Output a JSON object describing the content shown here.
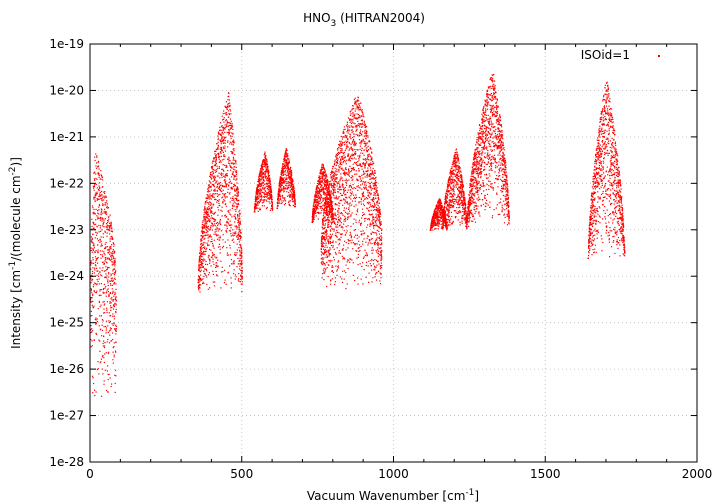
{
  "chart_data": {
    "type": "scatter",
    "title": {
      "main": "HNO",
      "sub": "3",
      "rest": " (HITRAN2004)"
    },
    "xlabel": {
      "p1": "Vacuum Wavenumber [cm",
      "sup1": "-1",
      "p2": "]"
    },
    "ylabel": {
      "p1": "Intensity [cm",
      "sup1": "-1",
      "p2": "/(molecule cm",
      "sup2": "-2",
      "p3": ")]"
    },
    "xlim": [
      0,
      2000
    ],
    "ylim": [
      1e-28,
      1e-19
    ],
    "yscale": "log",
    "grid": true,
    "legend": "top-right",
    "x_ticks": [
      "0",
      "500",
      "1000",
      "1500",
      "2000"
    ],
    "y_ticks": [
      "1e-19",
      "1e-20",
      "1e-21",
      "1e-22",
      "1e-23",
      "1e-24",
      "1e-25",
      "1e-26",
      "1e-27",
      "1e-28"
    ],
    "series": [
      {
        "name": "ISOid=1",
        "color": "#ff0000",
        "bands": [
          {
            "x": [
              0,
              85
            ],
            "peak_x": 15,
            "peak": 6e-22,
            "base": 1e-27,
            "edge": 1e-24
          },
          {
            "x": [
              355,
              500
            ],
            "peak_x": 455,
            "peak": 1e-20,
            "base": 4e-25,
            "edge": 9e-25
          },
          {
            "x": [
              540,
              600
            ],
            "peak_x": 575,
            "peak": 5e-22,
            "base": 2.5e-23,
            "edge": 2.5e-23
          },
          {
            "x": [
              615,
              675
            ],
            "peak_x": 645,
            "peak": 6e-22,
            "base": 3e-23,
            "edge": 3e-23
          },
          {
            "x": [
              730,
              800
            ],
            "peak_x": 765,
            "peak": 3e-22,
            "base": 1.5e-23,
            "edge": 1.5e-23
          },
          {
            "x": [
              760,
              960
            ],
            "peak_x": 880,
            "peak": 1e-20,
            "base": 4e-25,
            "edge": 6e-24
          },
          {
            "x": [
              1120,
              1175
            ],
            "peak_x": 1150,
            "peak": 5e-23,
            "base": 1e-23,
            "edge": 1e-23
          },
          {
            "x": [
              1160,
              1240
            ],
            "peak_x": 1205,
            "peak": 6e-22,
            "base": 1e-23,
            "edge": 1.2e-23
          },
          {
            "x": [
              1240,
              1380
            ],
            "peak_x": 1325,
            "peak": 3e-20,
            "base": 1.2e-23,
            "edge": 1.2e-23
          },
          {
            "x": [
              1640,
              1760
            ],
            "peak_x": 1700,
            "peak": 2e-20,
            "base": 2.5e-24,
            "edge": 2.5e-24
          }
        ]
      }
    ]
  }
}
